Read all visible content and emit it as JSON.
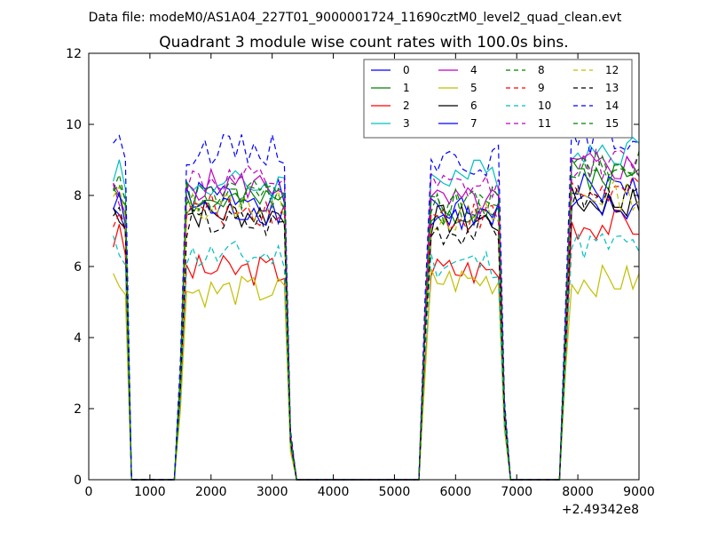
{
  "suptitle": "Data file: modeM0/AS1A04_227T01_9000001724_11690cztM0_level2_quad_clean.evt",
  "chart_data": {
    "type": "line",
    "title": "Quadrant 3 module wise count rates with 100.0s bins.",
    "xlabel": "",
    "ylabel": "",
    "xlim": [
      0,
      9000
    ],
    "ylim": [
      0,
      12
    ],
    "x_offset_label": "+2.49342e8",
    "x_ticks": [
      0,
      1000,
      2000,
      3000,
      4000,
      5000,
      6000,
      7000,
      8000,
      9000
    ],
    "y_ticks": [
      0,
      2,
      4,
      6,
      8,
      10,
      12
    ],
    "grid": false,
    "legend_placement": "top-right",
    "bin_width": 100,
    "segments": [
      {
        "x_start": 400,
        "x_end": 600
      },
      {
        "x_start": 1600,
        "x_end": 3200
      },
      {
        "x_start": 5600,
        "x_end": 6700
      },
      {
        "x_start": 7900,
        "x_end": 9000
      }
    ],
    "zero_gaps": [
      [
        700,
        1400
      ],
      [
        3400,
        5400
      ],
      [
        6900,
        7700
      ]
    ],
    "series": [
      {
        "name": "0",
        "color": "#0000ff",
        "dash": "solid",
        "levels": [
          7.6,
          8.0,
          7.5,
          8.2
        ]
      },
      {
        "name": "1",
        "color": "#008000",
        "dash": "solid",
        "levels": [
          8.3,
          7.8,
          7.6,
          8.6
        ]
      },
      {
        "name": "2",
        "color": "#ff0000",
        "dash": "solid",
        "levels": [
          6.8,
          5.9,
          5.9,
          7.2
        ]
      },
      {
        "name": "3",
        "color": "#00bfbf",
        "dash": "solid",
        "levels": [
          8.8,
          8.3,
          8.6,
          9.3
        ]
      },
      {
        "name": "4",
        "color": "#bf00bf",
        "dash": "solid",
        "levels": [
          8.0,
          8.3,
          7.8,
          8.8
        ]
      },
      {
        "name": "5",
        "color": "#bfbf00",
        "dash": "solid",
        "levels": [
          5.6,
          5.3,
          5.6,
          5.6
        ]
      },
      {
        "name": "6",
        "color": "#000000",
        "dash": "solid",
        "levels": [
          7.6,
          7.5,
          7.3,
          7.8
        ]
      },
      {
        "name": "7",
        "color": "#0000ff",
        "dash": "solid",
        "levels": [
          7.7,
          7.6,
          7.4,
          7.6
        ]
      },
      {
        "name": "8",
        "color": "#008000",
        "dash": "dashed",
        "levels": [
          8.4,
          7.9,
          7.6,
          8.8
        ]
      },
      {
        "name": "9",
        "color": "#ff0000",
        "dash": "dashed",
        "levels": [
          7.5,
          7.6,
          7.4,
          8.1
        ]
      },
      {
        "name": "10",
        "color": "#00bfbf",
        "dash": "dashed",
        "levels": [
          6.5,
          6.3,
          6.1,
          6.6
        ]
      },
      {
        "name": "11",
        "color": "#bf00bf",
        "dash": "dashed",
        "levels": [
          8.1,
          8.4,
          8.2,
          8.9
        ]
      },
      {
        "name": "12",
        "color": "#bfbf00",
        "dash": "dashed",
        "levels": [
          7.9,
          7.7,
          7.4,
          8.0
        ]
      },
      {
        "name": "13",
        "color": "#000000",
        "dash": "dashed",
        "levels": [
          7.5,
          7.2,
          7.0,
          7.9
        ]
      },
      {
        "name": "14",
        "color": "#0000ff",
        "dash": "dashed",
        "levels": [
          9.7,
          9.3,
          9.0,
          9.6
        ]
      },
      {
        "name": "15",
        "color": "#008000",
        "dash": "dashed",
        "levels": [
          8.5,
          8.0,
          7.8,
          8.9
        ]
      }
    ]
  }
}
